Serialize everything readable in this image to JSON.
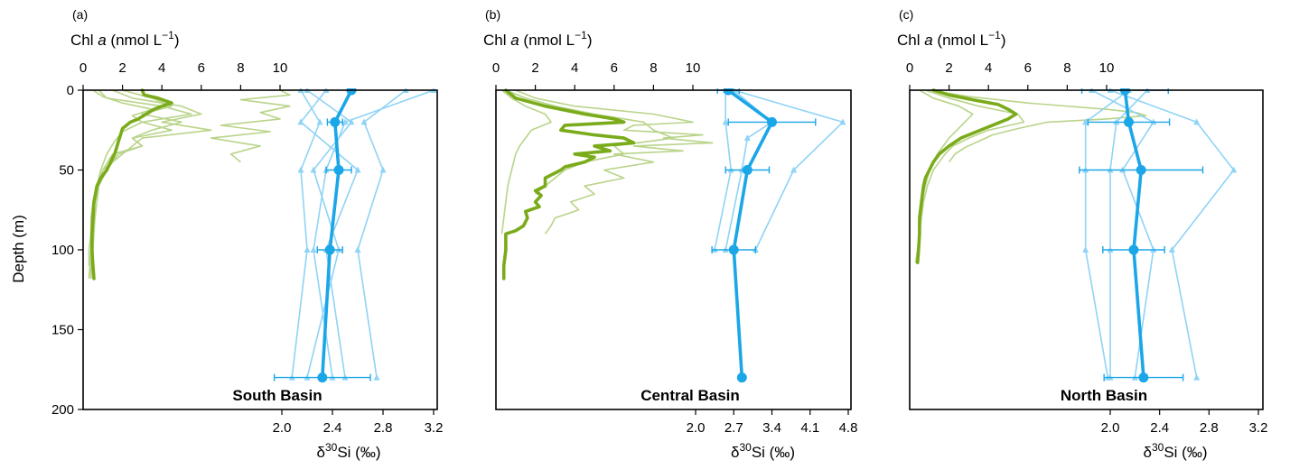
{
  "figure": {
    "ylabel": "Depth (m)",
    "y_ticks": [
      0,
      50,
      100,
      150,
      200
    ],
    "chl_ticks": [
      0,
      2,
      4,
      6,
      8,
      10
    ],
    "chl_label_main": "Chl ",
    "chl_label_italic": "a",
    "chl_label_rest": " (nmol L",
    "chl_label_sup": "−1",
    "chl_label_close": ")",
    "si_label_delta": "δ",
    "si_label_sup": "30",
    "si_label_rest": "Si (‰)",
    "colors": {
      "chl": "#7aab1a",
      "chl_light": "#b9d48a",
      "si": "#1ba6e8",
      "si_light": "#8fd3f5"
    }
  },
  "chart_data": [
    {
      "type": "line",
      "panel_label": "(a)",
      "basin": "South Basin",
      "ylim": [
        0,
        200
      ],
      "chl_xlim": [
        0,
        10
      ],
      "si_xlim": [
        2.0,
        3.2
      ],
      "si_ticks": [
        "2.0",
        "2.4",
        "2.8",
        "3.2"
      ],
      "chl_mean": {
        "depth": [
          0,
          3,
          5,
          8,
          10,
          12,
          15,
          18,
          20,
          24,
          28,
          32,
          36,
          40,
          45,
          50,
          55,
          60,
          70,
          80,
          90,
          100,
          110,
          118
        ],
        "value": [
          3.0,
          3.1,
          3.8,
          4.5,
          4.0,
          3.6,
          3.2,
          2.8,
          2.4,
          2.0,
          1.9,
          1.8,
          1.7,
          1.6,
          1.4,
          1.2,
          0.9,
          0.7,
          0.55,
          0.5,
          0.45,
          0.45,
          0.5,
          0.55
        ]
      },
      "chl_profiles": [
        {
          "depth": [
            0,
            3,
            6,
            10,
            14,
            18,
            22,
            26,
            30,
            35,
            40,
            45
          ],
          "value": [
            10.0,
            10.5,
            8.0,
            10.5,
            9.0,
            10.0,
            7.0,
            9.5,
            6.5,
            9.0,
            7.5,
            8.0
          ]
        },
        {
          "depth": [
            0,
            5,
            10,
            15,
            20,
            25,
            30,
            35,
            40,
            50,
            60,
            80,
            100,
            118
          ],
          "value": [
            0.8,
            1.2,
            4.0,
            5.5,
            3.0,
            4.5,
            2.5,
            3.0,
            1.8,
            1.2,
            0.8,
            0.6,
            0.5,
            0.4
          ]
        },
        {
          "depth": [
            0,
            5,
            10,
            15,
            20,
            25,
            30,
            40,
            50,
            60,
            70,
            80,
            90,
            100,
            110,
            118
          ],
          "value": [
            1.5,
            2.5,
            5.0,
            6.0,
            4.0,
            6.5,
            3.0,
            2.0,
            1.0,
            0.8,
            0.6,
            0.5,
            0.5,
            0.4,
            0.4,
            0.3
          ]
        },
        {
          "depth": [
            0,
            4,
            8,
            12,
            16,
            20,
            26,
            32,
            40,
            50,
            60,
            70,
            80,
            90,
            100,
            110
          ],
          "value": [
            0.5,
            1.0,
            2.0,
            3.5,
            2.5,
            3.0,
            2.0,
            1.6,
            1.2,
            0.9,
            0.7,
            0.5,
            0.4,
            0.4,
            0.3,
            0.3
          ]
        },
        {
          "depth": [
            0,
            5,
            10,
            15,
            20,
            25,
            30,
            35,
            40,
            50,
            60,
            80,
            100,
            118
          ],
          "value": [
            2.0,
            3.5,
            4.5,
            3.0,
            5.0,
            3.5,
            2.5,
            3.0,
            1.5,
            1.0,
            0.7,
            0.5,
            0.4,
            0.3
          ]
        }
      ],
      "si_mean": {
        "depth": [
          0,
          20,
          50,
          100,
          180
        ],
        "value": [
          2.55,
          2.42,
          2.45,
          2.38,
          2.32
        ],
        "err": [
          0.0,
          0.06,
          0.1,
          0.1,
          0.38
        ]
      },
      "si_profiles": [
        {
          "depth": [
            0,
            20,
            50,
            100,
            180
          ],
          "value": [
            2.15,
            2.3,
            2.15,
            2.2,
            2.08
          ]
        },
        {
          "depth": [
            0,
            20,
            50,
            100,
            180
          ],
          "value": [
            2.98,
            2.65,
            2.8,
            2.6,
            2.75
          ]
        },
        {
          "depth": [
            0,
            20,
            50,
            100,
            180
          ],
          "value": [
            3.2,
            2.5,
            2.35,
            2.25,
            2.4
          ]
        },
        {
          "depth": [
            0,
            20,
            50,
            100,
            180
          ],
          "value": [
            2.2,
            2.55,
            2.25,
            2.45,
            2.2
          ]
        },
        {
          "depth": [
            0,
            20,
            50,
            100,
            180
          ],
          "value": [
            2.35,
            2.15,
            2.6,
            2.35,
            2.5
          ]
        }
      ]
    },
    {
      "type": "line",
      "panel_label": "(b)",
      "basin": "Central Basin",
      "ylim": [
        0,
        200
      ],
      "chl_xlim": [
        0,
        10
      ],
      "si_xlim": [
        2.0,
        4.8
      ],
      "si_ticks": [
        "2.0",
        "2.7",
        "3.4",
        "4.1",
        "4.8"
      ],
      "chl_mean": {
        "depth": [
          0,
          5,
          10,
          15,
          18,
          20,
          21,
          22,
          25,
          28,
          30,
          33,
          35,
          38,
          40,
          42,
          45,
          48,
          50,
          55,
          60,
          63,
          66,
          70,
          73,
          76,
          80,
          85,
          88,
          90,
          95,
          100,
          110,
          118
        ],
        "value": [
          0.5,
          1.0,
          2.5,
          4.5,
          6.0,
          6.5,
          5.0,
          3.5,
          3.3,
          5.0,
          6.5,
          7.0,
          5.0,
          5.8,
          4.0,
          5.0,
          4.5,
          3.5,
          3.3,
          2.5,
          2.5,
          2.0,
          2.3,
          2.0,
          2.2,
          1.5,
          1.6,
          1.4,
          1.0,
          0.5,
          0.5,
          0.5,
          0.4,
          0.4
        ]
      },
      "chl_profiles": [
        {
          "depth": [
            0,
            5,
            10,
            15,
            20,
            22,
            25,
            28,
            30,
            33,
            35,
            38,
            40,
            45,
            50,
            55,
            60,
            65,
            70,
            75,
            80,
            85,
            90
          ],
          "value": [
            1.0,
            2.0,
            4.0,
            8.0,
            10.0,
            7.0,
            6.5,
            10.5,
            8.5,
            11.0,
            7.0,
            9.5,
            6.0,
            8.0,
            5.5,
            6.5,
            4.5,
            5.0,
            3.8,
            4.2,
            3.0,
            2.8,
            2.5
          ]
        },
        {
          "depth": [
            0,
            5,
            10,
            15,
            20,
            25,
            30,
            35,
            40,
            45,
            50,
            55,
            60,
            65
          ],
          "value": [
            0.5,
            1.5,
            3.0,
            5.0,
            7.5,
            8.0,
            9.0,
            6.0,
            6.5,
            4.5,
            3.5,
            3.0,
            2.5,
            2.0
          ]
        },
        {
          "depth": [
            0,
            5,
            10,
            15,
            20,
            25,
            30,
            35,
            40,
            50,
            60,
            70,
            80,
            90
          ],
          "value": [
            0.3,
            0.8,
            1.5,
            2.5,
            2.8,
            1.8,
            1.5,
            1.2,
            1.0,
            0.8,
            0.6,
            0.5,
            0.4,
            0.3
          ]
        }
      ],
      "si_mean": {
        "depth": [
          0,
          20,
          50,
          100,
          180
        ],
        "value": [
          2.6,
          3.4,
          2.95,
          2.7,
          2.85
        ],
        "err": [
          0.2,
          0.8,
          0.4,
          0.4,
          0.0
        ]
      },
      "si_profiles": [
        {
          "depth": [
            0,
            20,
            50,
            100
          ],
          "value": [
            2.7,
            4.7,
            3.8,
            3.1
          ]
        },
        {
          "depth": [
            0,
            20,
            50,
            100
          ],
          "value": [
            2.55,
            2.55,
            2.65,
            2.35
          ]
        },
        {
          "depth": [
            0,
            20,
            30,
            50,
            100
          ],
          "value": [
            2.7,
            3.4,
            2.95,
            2.85,
            2.55
          ]
        }
      ]
    },
    {
      "type": "line",
      "panel_label": "(c)",
      "basin": "North Basin",
      "ylim": [
        0,
        200
      ],
      "chl_xlim": [
        0,
        10
      ],
      "si_xlim": [
        2.0,
        3.2
      ],
      "si_ticks": [
        "2.0",
        "2.4",
        "2.8",
        "3.2"
      ],
      "chl_mean": {
        "depth": [
          0,
          3,
          6,
          9,
          12,
          15,
          18,
          22,
          26,
          30,
          35,
          40,
          45,
          50,
          55,
          60,
          70,
          80,
          90,
          100,
          108
        ],
        "value": [
          1.2,
          2.0,
          3.2,
          4.5,
          5.0,
          5.4,
          5.0,
          4.2,
          3.4,
          2.6,
          2.0,
          1.5,
          1.2,
          1.0,
          0.8,
          0.7,
          0.6,
          0.5,
          0.5,
          0.45,
          0.4
        ]
      },
      "chl_profiles": [
        {
          "depth": [
            0,
            4,
            8,
            12,
            14,
            16,
            18,
            20,
            24,
            28,
            32,
            36,
            40,
            45
          ],
          "value": [
            1.0,
            3.0,
            6.0,
            10.0,
            11.5,
            12.0,
            10.0,
            7.0,
            5.5,
            4.2,
            3.5,
            2.8,
            2.3,
            2.0
          ]
        },
        {
          "depth": [
            0,
            5,
            10,
            15,
            20,
            25,
            30,
            35,
            40,
            50,
            60,
            70,
            80,
            90,
            100,
            108
          ],
          "value": [
            0.8,
            2.0,
            3.5,
            5.5,
            5.8,
            4.0,
            3.0,
            2.2,
            1.8,
            1.2,
            0.9,
            0.7,
            0.6,
            0.5,
            0.4,
            0.3
          ]
        },
        {
          "depth": [
            0,
            5,
            10,
            15,
            20,
            30,
            40,
            50,
            60,
            70,
            80,
            90,
            100,
            108
          ],
          "value": [
            0.5,
            1.2,
            2.5,
            3.2,
            2.8,
            2.0,
            1.4,
            1.0,
            0.8,
            0.6,
            0.5,
            0.5,
            0.4,
            0.4
          ]
        }
      ],
      "si_mean": {
        "depth": [
          0,
          20,
          50,
          100,
          180
        ],
        "value": [
          2.12,
          2.15,
          2.25,
          2.19,
          2.27
        ],
        "err": [
          0.35,
          0.33,
          0.5,
          0.25,
          0.32
        ]
      },
      "si_profiles": [
        {
          "depth": [
            0,
            20,
            50,
            100,
            180
          ],
          "value": [
            2.0,
            2.7,
            3.0,
            2.5,
            2.7
          ]
        },
        {
          "depth": [
            0,
            20,
            50,
            100,
            180
          ],
          "value": [
            2.15,
            1.8,
            1.8,
            1.8,
            1.98
          ]
        },
        {
          "depth": [
            0,
            20,
            50,
            100,
            180
          ],
          "value": [
            2.3,
            2.05,
            2.0,
            2.0,
            2.0
          ]
        },
        {
          "depth": [
            0,
            20,
            50,
            100,
            180
          ],
          "value": [
            1.85,
            2.35,
            2.1,
            2.35,
            2.2
          ]
        }
      ]
    }
  ]
}
